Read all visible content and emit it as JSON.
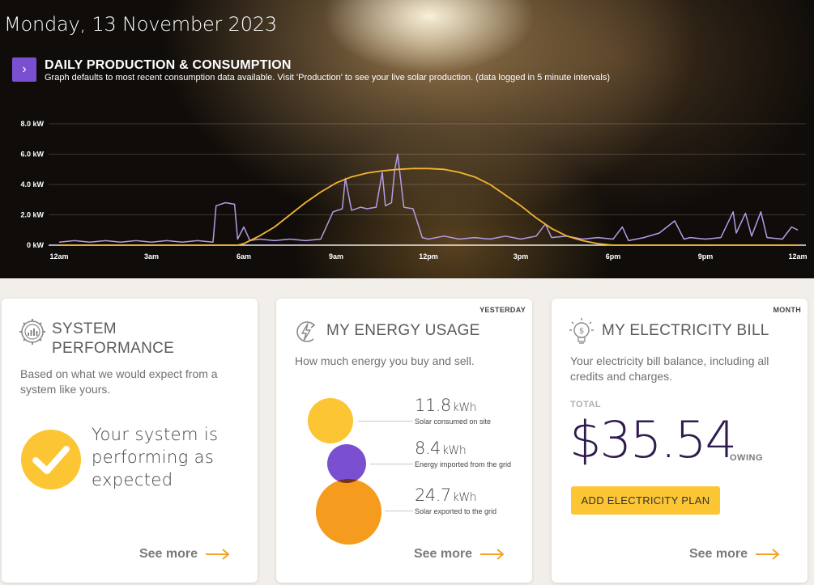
{
  "header": {
    "date": "Monday, 13 November 2023",
    "chart_title": "DAILY PRODUCTION & CONSUMPTION",
    "chart_subtitle": "Graph defaults to most recent consumption data available. Visit 'Production' to see your live solar production. (data logged in 5 minute intervals)",
    "toggle_icon": "chevron-right-icon"
  },
  "colors": {
    "accent_purple": "#7a4fd0",
    "consumption_line": "#b39ce6",
    "production_line": "#f3b531",
    "yellow": "#fbc534",
    "orange": "#f59b1e",
    "bill_text": "#2f1b4f"
  },
  "chart_data": {
    "type": "line",
    "x_ticks": [
      "12am",
      "3am",
      "6am",
      "9am",
      "12pm",
      "3pm",
      "6pm",
      "9pm",
      "12am"
    ],
    "y_ticks": [
      "0 kW",
      "2.0 kW",
      "4.0 kW",
      "6.0 kW",
      "8.0 kW"
    ],
    "ylim": [
      0,
      8
    ],
    "xlim": [
      0,
      24
    ],
    "grid": true,
    "series": [
      {
        "color": "#b39ce6",
        "points": [
          [
            0,
            0.2
          ],
          [
            0.5,
            0.3
          ],
          [
            1,
            0.2
          ],
          [
            1.5,
            0.3
          ],
          [
            2,
            0.2
          ],
          [
            2.5,
            0.3
          ],
          [
            3,
            0.2
          ],
          [
            3.5,
            0.3
          ],
          [
            4,
            0.2
          ],
          [
            4.5,
            0.3
          ],
          [
            5,
            0.2
          ],
          [
            5.1,
            2.6
          ],
          [
            5.4,
            2.8
          ],
          [
            5.7,
            2.7
          ],
          [
            5.8,
            0.4
          ],
          [
            6,
            1.2
          ],
          [
            6.2,
            0.3
          ],
          [
            6.5,
            0.4
          ],
          [
            7,
            0.3
          ],
          [
            7.5,
            0.4
          ],
          [
            8,
            0.3
          ],
          [
            8.5,
            0.4
          ],
          [
            8.9,
            2.2
          ],
          [
            9.2,
            2.4
          ],
          [
            9.3,
            4.4
          ],
          [
            9.5,
            2.3
          ],
          [
            9.8,
            2.5
          ],
          [
            10,
            2.4
          ],
          [
            10.3,
            2.5
          ],
          [
            10.5,
            4.8
          ],
          [
            10.6,
            2.6
          ],
          [
            10.8,
            2.8
          ],
          [
            10.9,
            4.9
          ],
          [
            11,
            6.0
          ],
          [
            11.2,
            2.5
          ],
          [
            11.5,
            2.4
          ],
          [
            11.8,
            0.5
          ],
          [
            12,
            0.4
          ],
          [
            12.5,
            0.6
          ],
          [
            13,
            0.4
          ],
          [
            13.5,
            0.5
          ],
          [
            14,
            0.4
          ],
          [
            14.5,
            0.6
          ],
          [
            15,
            0.4
          ],
          [
            15.5,
            0.6
          ],
          [
            15.8,
            1.4
          ],
          [
            16,
            0.5
          ],
          [
            16.5,
            0.6
          ],
          [
            17,
            0.4
          ],
          [
            17.5,
            0.5
          ],
          [
            18,
            0.4
          ],
          [
            18.3,
            1.2
          ],
          [
            18.5,
            0.3
          ],
          [
            19,
            0.5
          ],
          [
            19.5,
            0.8
          ],
          [
            20,
            1.6
          ],
          [
            20.3,
            0.4
          ],
          [
            20.5,
            0.5
          ],
          [
            21,
            0.4
          ],
          [
            21.5,
            0.5
          ],
          [
            21.9,
            2.2
          ],
          [
            22,
            0.8
          ],
          [
            22.3,
            2.1
          ],
          [
            22.5,
            0.6
          ],
          [
            22.8,
            2.2
          ],
          [
            23,
            0.5
          ],
          [
            23.5,
            0.4
          ],
          [
            23.8,
            1.2
          ],
          [
            24,
            1.0
          ]
        ]
      },
      {
        "color": "#f3b531",
        "points": [
          [
            0,
            0
          ],
          [
            5.8,
            0
          ],
          [
            6,
            0.1
          ],
          [
            6.5,
            0.6
          ],
          [
            7,
            1.2
          ],
          [
            7.5,
            2.0
          ],
          [
            8,
            2.8
          ],
          [
            8.5,
            3.5
          ],
          [
            9,
            4.1
          ],
          [
            9.5,
            4.5
          ],
          [
            10,
            4.75
          ],
          [
            10.5,
            4.9
          ],
          [
            11,
            5.0
          ],
          [
            11.5,
            5.05
          ],
          [
            12,
            5.05
          ],
          [
            12.5,
            5.0
          ],
          [
            13,
            4.8
          ],
          [
            13.5,
            4.5
          ],
          [
            14,
            4.0
          ],
          [
            14.5,
            3.3
          ],
          [
            15,
            2.6
          ],
          [
            15.5,
            1.8
          ],
          [
            16,
            1.1
          ],
          [
            16.5,
            0.6
          ],
          [
            17,
            0.3
          ],
          [
            17.5,
            0.1
          ],
          [
            18,
            0
          ],
          [
            24,
            0
          ]
        ]
      }
    ]
  },
  "cards": {
    "performance": {
      "icon": "gauge-gear-icon",
      "title_line1": "SYSTEM",
      "title_line2": "PERFORMANCE",
      "description": "Based on what we would expect from a system like yours.",
      "status_line1": "Your system is",
      "status_line2": "performing as",
      "status_line3": "expected",
      "status_icon": "check-icon",
      "see_more": "See more"
    },
    "energy": {
      "tag": "YESTERDAY",
      "icon": "lightning-icon",
      "title": "MY ENERGY USAGE",
      "description": "How much energy you buy and sell.",
      "unit": "kWh",
      "stats": [
        {
          "value": "11.8",
          "label": "Solar consumed on site",
          "color": "#fbc534"
        },
        {
          "value": "8.4",
          "label": "Energy imported from the grid",
          "color": "#7a4fd0"
        },
        {
          "value": "24.7",
          "label": "Solar exported to the grid",
          "color": "#f59b1e"
        }
      ],
      "see_more": "See more"
    },
    "bill": {
      "tag": "MONTH",
      "icon": "lightbulb-dollar-icon",
      "title": "MY ELECTRICITY BILL",
      "description": "Your electricity bill balance, including all credits and charges.",
      "total_label": "TOTAL",
      "amount": "$35.54",
      "owing_label": "OWING",
      "plan_button": "ADD ELECTRICITY PLAN",
      "see_more": "See more"
    }
  }
}
